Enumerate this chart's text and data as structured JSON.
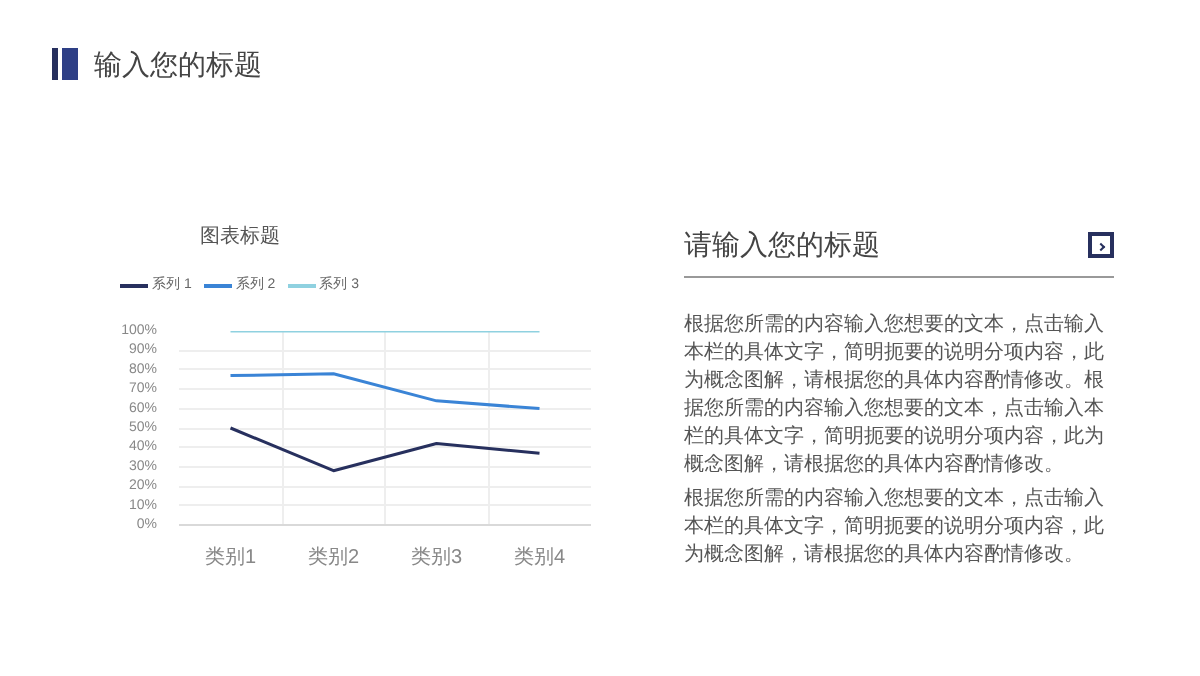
{
  "chart_data": [
    {
      "type": "other",
      "title": "输入您的标题"
    },
    {
      "type": "line",
      "title": "图表标题",
      "categories": [
        "类别1",
        "类别2",
        "类别3",
        "类别4"
      ],
      "series": [
        {
          "name": "系列 1",
          "color": "#27305e",
          "values": [
            50,
            28,
            42,
            37
          ]
        },
        {
          "name": "系列 2",
          "color": "#3a84d6",
          "values": [
            77,
            78,
            64,
            60
          ]
        },
        {
          "name": "系列 3",
          "color": "#8fd1e0",
          "values": [
            100,
            100,
            100,
            100
          ]
        }
      ],
      "ylim": [
        0,
        100
      ],
      "yticks": [
        {
          "value": 0,
          "label": "0%"
        },
        {
          "value": 10,
          "label": "10%"
        },
        {
          "value": 20,
          "label": "20%"
        },
        {
          "value": 30,
          "label": "30%"
        },
        {
          "value": 40,
          "label": "40%"
        },
        {
          "value": 50,
          "label": "50%"
        },
        {
          "value": 60,
          "label": "60%"
        },
        {
          "value": 70,
          "label": "70%"
        },
        {
          "value": 80,
          "label": "80%"
        },
        {
          "value": 90,
          "label": "90%"
        },
        {
          "value": 100,
          "label": "100%"
        }
      ],
      "grid": true,
      "legend": "top",
      "marker": "none",
      "line_style": "solid"
    },
    {
      "type": "other",
      "title": "请输入您的标题",
      "annotations": [
        "根据您所需的内容输入您想要的文本，点击输入本栏的具体文字，简明扼要的说明分项内容，此为概念图解，请根据您的具体内容酌情修改。根据您所需的内容输入您想要的文本，点击输入本栏的具体文字，简明扼要的说明分项内容，此为概念图解，请根据您的具体内容酌情修改。",
        "根据您所需的内容输入您想要的文本，点击输入本栏的具体文字，简明扼要的说明分项内容，此为概念图解，请根据您的具体内容酌情修改。"
      ]
    }
  ]
}
